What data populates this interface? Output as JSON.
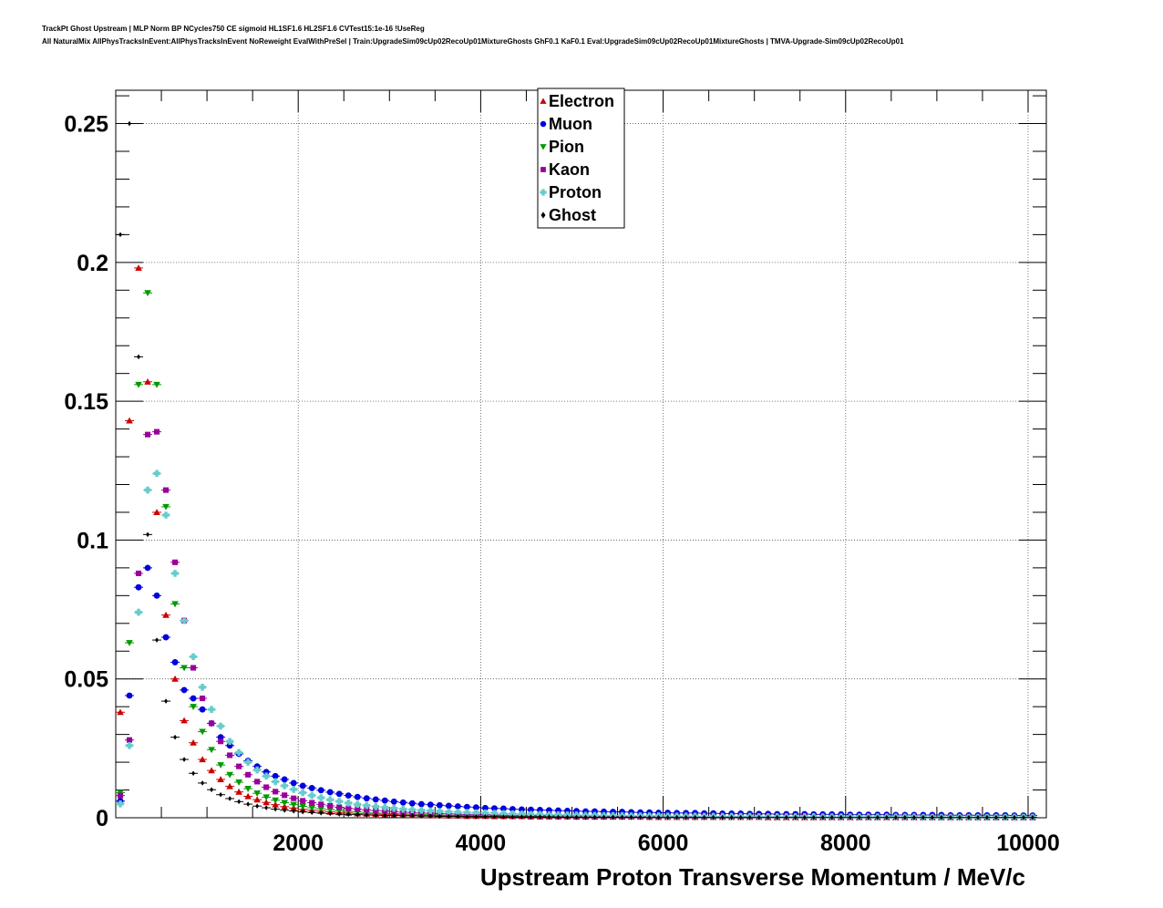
{
  "header": {
    "line1": "TrackPt Ghost Upstream | MLP Norm BP NCycles750 CE sigmoid HL1SF1.6 HL2SF1.6 CVTest15:1e-16 !UseReg",
    "line2": "All NaturalMix AllPhysTracksInEvent:AllPhysTracksInEvent NoReweight EvalWithPreSel | Train:UpgradeSim09cUp02RecoUp01MixtureGhosts GhF0.1 KaF0.1 Eval:UpgradeSim09cUp02RecoUp01MixtureGhosts | TMVA-Upgrade-Sim09cUp02RecoUp01"
  },
  "chart_data": {
    "type": "scatter",
    "title": "",
    "xlabel": "Upstream Proton Transverse Momentum / MeV/c",
    "ylabel": "",
    "xlim": [
      0,
      10200
    ],
    "ylim": [
      0,
      0.262
    ],
    "xticks": [
      2000,
      4000,
      6000,
      8000,
      10000
    ],
    "xtick_labels": [
      "2000",
      "4000",
      "6000",
      "8000",
      "10000"
    ],
    "yticks": [
      0,
      0.05,
      0.1,
      0.15,
      0.2,
      0.25
    ],
    "ytick_labels": [
      "0",
      "0.05",
      "0.1",
      "0.15",
      "0.2",
      "0.25"
    ],
    "grid": true,
    "legend_position": "top-center",
    "x": [
      50,
      150,
      250,
      350,
      450,
      550,
      650,
      750,
      850,
      950,
      1050,
      1150,
      1250,
      1350,
      1450,
      1550,
      1650,
      1750,
      1850,
      1950,
      2050,
      2150,
      2250,
      2350,
      2450,
      2550,
      2650,
      2750,
      2850,
      2950,
      3050,
      3150,
      3250,
      3350,
      3450,
      3550,
      3650,
      3750,
      3850,
      3950,
      4050,
      4150,
      4250,
      4350,
      4450,
      4550,
      4650,
      4750,
      4850,
      4950,
      5050,
      5150,
      5250,
      5350,
      5450,
      5550,
      5650,
      5750,
      5850,
      5950,
      6050,
      6150,
      6250,
      6350,
      6450,
      6550,
      6650,
      6750,
      6850,
      6950,
      7050,
      7150,
      7250,
      7350,
      7450,
      7550,
      7650,
      7750,
      7850,
      7950,
      8050,
      8150,
      8250,
      8350,
      8450,
      8550,
      8650,
      8750,
      8850,
      8950,
      9050,
      9150,
      9250,
      9350,
      9450,
      9550,
      9650,
      9750,
      9850,
      9950,
      10050
    ],
    "series": [
      {
        "name": "Electron",
        "color": "#cc0000",
        "marker": "triangle-up",
        "values": [
          0.038,
          0.143,
          0.198,
          0.157,
          0.11,
          0.073,
          0.05,
          0.035,
          0.027,
          0.021,
          0.017,
          0.0138,
          0.0113,
          0.0093,
          0.0077,
          0.0065,
          0.0055,
          0.0047,
          0.004,
          0.0035,
          0.003,
          0.0027,
          0.0024,
          0.0021,
          0.0019,
          0.0017,
          0.0015,
          0.0014,
          0.0013,
          0.0012,
          0.0011,
          0.001,
          0.0009,
          0.0009,
          0.0008,
          0.0008,
          0.0007,
          0.0007,
          0.0006,
          0.0006,
          0.0006,
          0.0005,
          0.0005,
          0.0005,
          0.0005,
          0.0004,
          0.0004,
          0.0004,
          0.0004,
          0.0004,
          0.0003,
          0.0003,
          0.0003,
          0.0003,
          0.0003,
          0.0003,
          0.0003,
          0.0003,
          0.0002,
          0.0002,
          0.0002,
          0.0002,
          0.0002,
          0.0002,
          0.0002,
          0.0002,
          0.0002,
          0.0002,
          0.0002,
          0.0002,
          0.0002,
          0.0001,
          0.0001,
          0.0001,
          0.0001,
          0.0001,
          0.0001,
          0.0001,
          0.0001,
          0.0001,
          0.0001,
          0.0001,
          0.0001,
          0.0001,
          0.0001,
          0.0001,
          0.0001,
          0.0001,
          0.0001,
          0.0001,
          0.0001,
          0.0001,
          0.0001,
          0.0001,
          0.0001,
          0.0001,
          0.0001,
          0.0001,
          0.0001,
          0.0001,
          0.0001
        ]
      },
      {
        "name": "Muon",
        "color": "#0000dd",
        "marker": "circle",
        "values": [
          0.006,
          0.044,
          0.083,
          0.09,
          0.08,
          0.065,
          0.056,
          0.046,
          0.043,
          0.039,
          0.034,
          0.029,
          0.026,
          0.023,
          0.0205,
          0.0185,
          0.0165,
          0.015,
          0.0138,
          0.0125,
          0.0115,
          0.0107,
          0.0099,
          0.0092,
          0.0086,
          0.008,
          0.0075,
          0.007,
          0.0066,
          0.0062,
          0.0058,
          0.0055,
          0.0052,
          0.0049,
          0.0047,
          0.0045,
          0.0043,
          0.0041,
          0.0039,
          0.0037,
          0.0035,
          0.0034,
          0.0033,
          0.0031,
          0.003,
          0.0029,
          0.0028,
          0.0027,
          0.0026,
          0.0025,
          0.0024,
          0.0023,
          0.0023,
          0.0022,
          0.0021,
          0.0021,
          0.002,
          0.0019,
          0.0019,
          0.0018,
          0.0018,
          0.0017,
          0.0017,
          0.0017,
          0.0016,
          0.0016,
          0.0015,
          0.0015,
          0.0015,
          0.0014,
          0.0014,
          0.0014,
          0.0013,
          0.0013,
          0.0013,
          0.0013,
          0.0012,
          0.0012,
          0.0012,
          0.0012,
          0.0011,
          0.0011,
          0.0011,
          0.0011,
          0.0011,
          0.001,
          0.001,
          0.001,
          0.001,
          0.001,
          0.001,
          0.0009,
          0.0009,
          0.0009,
          0.0009,
          0.0009,
          0.0009,
          0.0009,
          0.0008,
          0.0008,
          0.0008
        ]
      },
      {
        "name": "Pion",
        "color": "#009900",
        "marker": "triangle-down",
        "values": [
          0.009,
          0.063,
          0.156,
          0.189,
          0.156,
          0.112,
          0.077,
          0.054,
          0.04,
          0.031,
          0.0245,
          0.019,
          0.0155,
          0.0128,
          0.0105,
          0.0088,
          0.0074,
          0.0063,
          0.0054,
          0.0047,
          0.0041,
          0.0036,
          0.0032,
          0.0029,
          0.0026,
          0.0023,
          0.0021,
          0.0019,
          0.0017,
          0.0016,
          0.0015,
          0.0014,
          0.0013,
          0.0012,
          0.0011,
          0.001,
          0.0009,
          0.0009,
          0.0008,
          0.0008,
          0.0007,
          0.0007,
          0.0007,
          0.0006,
          0.0006,
          0.0006,
          0.0005,
          0.0005,
          0.0005,
          0.0005,
          0.0004,
          0.0004,
          0.0004,
          0.0004,
          0.0004,
          0.0003,
          0.0003,
          0.0003,
          0.0003,
          0.0003,
          0.0003,
          0.0003,
          0.0003,
          0.0002,
          0.0002,
          0.0002,
          0.0002,
          0.0002,
          0.0002,
          0.0002,
          0.0002,
          0.0002,
          0.0002,
          0.0002,
          0.0002,
          0.0001,
          0.0001,
          0.0001,
          0.0001,
          0.0001,
          0.0001,
          0.0001,
          0.0001,
          0.0001,
          0.0001,
          0.0001,
          0.0001,
          0.0001,
          0.0001,
          0.0001,
          0.0001,
          0.0001,
          0.0001,
          0.0001,
          0.0001,
          0.0001,
          0.0001,
          0.0001,
          0.0001,
          0.0001,
          0.0001
        ]
      },
      {
        "name": "Kaon",
        "color": "#990099",
        "marker": "square",
        "values": [
          0.008,
          0.028,
          0.088,
          0.138,
          0.139,
          0.118,
          0.092,
          0.071,
          0.054,
          0.043,
          0.034,
          0.0275,
          0.0225,
          0.0185,
          0.0155,
          0.013,
          0.011,
          0.0094,
          0.0081,
          0.007,
          0.0061,
          0.0054,
          0.0048,
          0.0043,
          0.0038,
          0.0034,
          0.0031,
          0.0028,
          0.0026,
          0.0024,
          0.0022,
          0.002,
          0.0019,
          0.0017,
          0.0016,
          0.0015,
          0.0014,
          0.0013,
          0.0012,
          0.0012,
          0.0011,
          0.001,
          0.001,
          0.0009,
          0.0009,
          0.0008,
          0.0008,
          0.0008,
          0.0007,
          0.0007,
          0.0007,
          0.0006,
          0.0006,
          0.0006,
          0.0006,
          0.0005,
          0.0005,
          0.0005,
          0.0005,
          0.0005,
          0.0004,
          0.0004,
          0.0004,
          0.0004,
          0.0004,
          0.0004,
          0.0004,
          0.0003,
          0.0003,
          0.0003,
          0.0003,
          0.0003,
          0.0003,
          0.0003,
          0.0003,
          0.0003,
          0.0003,
          0.0002,
          0.0002,
          0.0002,
          0.0002,
          0.0002,
          0.0002,
          0.0002,
          0.0002,
          0.0002,
          0.0002,
          0.0002,
          0.0002,
          0.0002,
          0.0002,
          0.0002,
          0.0002,
          0.0002,
          0.0001,
          0.0001,
          0.0001,
          0.0001,
          0.0001,
          0.0001,
          0.0001
        ]
      },
      {
        "name": "Proton",
        "color": "#66cccc",
        "marker": "cross",
        "values": [
          0.005,
          0.026,
          0.074,
          0.118,
          0.124,
          0.109,
          0.088,
          0.071,
          0.058,
          0.047,
          0.039,
          0.033,
          0.0275,
          0.0235,
          0.02,
          0.0172,
          0.015,
          0.013,
          0.0115,
          0.0102,
          0.009,
          0.008,
          0.0072,
          0.0065,
          0.0059,
          0.0053,
          0.0048,
          0.0044,
          0.004,
          0.0037,
          0.0034,
          0.0031,
          0.0029,
          0.0027,
          0.0025,
          0.0023,
          0.0021,
          0.002,
          0.0019,
          0.0018,
          0.0017,
          0.0016,
          0.0015,
          0.0014,
          0.0013,
          0.0012,
          0.0012,
          0.0011,
          0.0011,
          0.001,
          0.001,
          0.0009,
          0.0009,
          0.0008,
          0.0008,
          0.0008,
          0.0007,
          0.0007,
          0.0007,
          0.0007,
          0.0006,
          0.0006,
          0.0006,
          0.0006,
          0.0005,
          0.0005,
          0.0005,
          0.0005,
          0.0005,
          0.0005,
          0.0004,
          0.0004,
          0.0004,
          0.0004,
          0.0004,
          0.0004,
          0.0004,
          0.0003,
          0.0003,
          0.0003,
          0.0003,
          0.0003,
          0.0003,
          0.0003,
          0.0003,
          0.0003,
          0.0003,
          0.0003,
          0.0002,
          0.0002,
          0.0002,
          0.0002,
          0.0002,
          0.0002,
          0.0002,
          0.0002,
          0.0002,
          0.0002,
          0.0002,
          0.0002,
          0.0002
        ]
      },
      {
        "name": "Ghost",
        "color": "#000000",
        "marker": "diamond",
        "values": [
          0.21,
          0.25,
          0.166,
          0.102,
          0.064,
          0.042,
          0.029,
          0.021,
          0.016,
          0.0125,
          0.0101,
          0.0083,
          0.0069,
          0.0058,
          0.0049,
          0.0042,
          0.0036,
          0.0031,
          0.0027,
          0.0024,
          0.0021,
          0.0019,
          0.0017,
          0.0015,
          0.0013,
          0.0012,
          0.0011,
          0.001,
          0.0009,
          0.0008,
          0.0008,
          0.0007,
          0.0007,
          0.0006,
          0.0006,
          0.0005,
          0.0005,
          0.0005,
          0.0004,
          0.0004,
          0.0004,
          0.0004,
          0.0003,
          0.0003,
          0.0003,
          0.0003,
          0.0003,
          0.0003,
          0.0002,
          0.0002,
          0.0002,
          0.0002,
          0.0002,
          0.0002,
          0.0002,
          0.0002,
          0.0002,
          0.0002,
          0.0001,
          0.0001,
          0.0001,
          0.0001,
          0.0001,
          0.0001,
          0.0001,
          0.0001,
          0.0001,
          0.0001,
          0.0001,
          0.0001,
          0.0001,
          0.0001,
          0.0001,
          0.0001,
          0.0001,
          0.0001,
          0.0001,
          0.0001,
          0.0001,
          0.0001,
          0.0001,
          0.0001,
          0.0001,
          0.0001,
          0.0001,
          0.0001,
          0.0001,
          0.0001,
          0.0001,
          0.0001,
          0.0001,
          0.0001,
          0.0001,
          0.0001,
          0.0001,
          0.0001,
          0.0001,
          0.0001,
          0.0001,
          0.0001,
          0.0001
        ]
      }
    ]
  }
}
